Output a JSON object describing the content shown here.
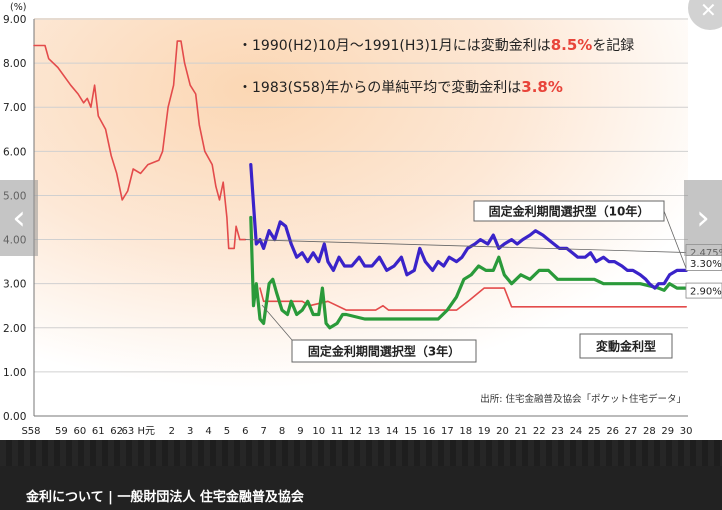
{
  "chart_data": {
    "type": "line",
    "ylabel": "(%)",
    "ylim": [
      0,
      9
    ],
    "y_ticks": [
      "9.00",
      "8.00",
      "7.00",
      "6.00",
      "5.00",
      "4.00",
      "3.00",
      "2.00",
      "1.00",
      "0.00"
    ],
    "x_ticks": [
      "S58",
      "59",
      "60",
      "61",
      "62",
      "63",
      "H元",
      "2",
      "3",
      "4",
      "5",
      "6",
      "7",
      "8",
      "9",
      "10",
      "11",
      "12",
      "13",
      "14",
      "15",
      "16",
      "17",
      "18",
      "19",
      "20",
      "21",
      "22",
      "23",
      "24",
      "25",
      "26",
      "27",
      "28",
      "29",
      "30"
    ],
    "x_tick_years": [
      1983,
      1984,
      1985,
      1986,
      1987,
      1988,
      1989,
      1990,
      1991,
      1992,
      1993,
      1994,
      1995,
      1996,
      1997,
      1998,
      1999,
      2000,
      2001,
      2002,
      2003,
      2004,
      2005,
      2006,
      2007,
      2008,
      2009,
      2010,
      2011,
      2012,
      2013,
      2014,
      2015,
      2016,
      2017,
      2018
    ],
    "annotations": [
      {
        "parts": [
          "・1990(H2)10月～1991(H3)1月には変動金利は",
          "8.5%",
          "を記録"
        ]
      },
      {
        "parts": [
          "・1983(S58)年からの単純平均で変動金利は",
          "3.8%",
          ""
        ]
      }
    ],
    "source": "出所: 住宅金融普及協会「ポケット住宅データ」",
    "series": [
      {
        "name": "変動金利型",
        "color": "#e34b4b",
        "end_label": "2.475%",
        "points": [
          [
            1983.0,
            8.4
          ],
          [
            1983.3,
            8.4
          ],
          [
            1983.6,
            8.4
          ],
          [
            1983.8,
            8.1
          ],
          [
            1984.3,
            7.9
          ],
          [
            1985.0,
            7.5
          ],
          [
            1985.4,
            7.3
          ],
          [
            1985.7,
            7.1
          ],
          [
            1985.9,
            7.2
          ],
          [
            1986.1,
            7.0
          ],
          [
            1986.3,
            7.5
          ],
          [
            1986.5,
            6.8
          ],
          [
            1986.9,
            6.5
          ],
          [
            1987.2,
            5.9
          ],
          [
            1987.5,
            5.5
          ],
          [
            1987.8,
            4.9
          ],
          [
            1988.1,
            5.1
          ],
          [
            1988.4,
            5.6
          ],
          [
            1988.8,
            5.5
          ],
          [
            1989.2,
            5.7
          ],
          [
            1989.8,
            5.8
          ],
          [
            1990.0,
            6.0
          ],
          [
            1990.3,
            7.0
          ],
          [
            1990.6,
            7.5
          ],
          [
            1990.8,
            8.5
          ],
          [
            1991.0,
            8.5
          ],
          [
            1991.2,
            8.0
          ],
          [
            1991.5,
            7.5
          ],
          [
            1991.8,
            7.3
          ],
          [
            1992.0,
            6.6
          ],
          [
            1992.3,
            6.0
          ],
          [
            1992.7,
            5.7
          ],
          [
            1992.9,
            5.2
          ],
          [
            1993.1,
            4.9
          ],
          [
            1993.3,
            5.3
          ],
          [
            1993.5,
            4.5
          ],
          [
            1993.6,
            3.8
          ],
          [
            1993.9,
            3.8
          ],
          [
            1994.0,
            4.3
          ],
          [
            1994.2,
            4.0
          ],
          [
            1994.4,
            4.0
          ],
          [
            1994.5,
            4.0
          ]
        ]
      },
      {
        "name": "変動金利型",
        "color": "#e34b4b",
        "points": [
          [
            1995.3,
            2.9
          ],
          [
            1995.5,
            2.6
          ],
          [
            1996.0,
            2.6
          ],
          [
            1997.0,
            2.6
          ],
          [
            1997.6,
            2.6
          ],
          [
            1998.0,
            2.5
          ],
          [
            1999.0,
            2.6
          ],
          [
            2000.0,
            2.4
          ],
          [
            2001.0,
            2.4
          ],
          [
            2001.6,
            2.4
          ],
          [
            2002.0,
            2.5
          ],
          [
            2002.3,
            2.4
          ],
          [
            2004.0,
            2.4
          ],
          [
            2006.0,
            2.4
          ],
          [
            2006.7,
            2.625
          ],
          [
            2007.5,
            2.9
          ],
          [
            2008.6,
            2.9
          ],
          [
            2009.0,
            2.475
          ],
          [
            2012.0,
            2.475
          ],
          [
            2016.0,
            2.475
          ],
          [
            2018.5,
            2.475
          ]
        ]
      },
      {
        "name": "固定金利期間選択型(3年)",
        "color": "#2a9a3a",
        "end_label": "2.90%",
        "points": [
          [
            1994.8,
            4.5
          ],
          [
            1994.95,
            2.5
          ],
          [
            1995.1,
            3.0
          ],
          [
            1995.3,
            2.2
          ],
          [
            1995.5,
            2.1
          ],
          [
            1995.8,
            3.0
          ],
          [
            1996.0,
            3.1
          ],
          [
            1996.2,
            2.8
          ],
          [
            1996.5,
            2.4
          ],
          [
            1996.8,
            2.3
          ],
          [
            1997.0,
            2.6
          ],
          [
            1997.3,
            2.3
          ],
          [
            1997.6,
            2.4
          ],
          [
            1997.9,
            2.6
          ],
          [
            1998.2,
            2.3
          ],
          [
            1998.5,
            2.3
          ],
          [
            1998.7,
            2.9
          ],
          [
            1998.9,
            2.1
          ],
          [
            1999.1,
            2.0
          ],
          [
            1999.5,
            2.1
          ],
          [
            1999.8,
            2.3
          ],
          [
            2000.0,
            2.3
          ],
          [
            2001.0,
            2.2
          ],
          [
            2002.5,
            2.2
          ],
          [
            2004.0,
            2.2
          ],
          [
            2005.0,
            2.2
          ],
          [
            2005.5,
            2.4
          ],
          [
            2006.0,
            2.7
          ],
          [
            2006.4,
            3.1
          ],
          [
            2006.8,
            3.2
          ],
          [
            2007.2,
            3.4
          ],
          [
            2007.6,
            3.3
          ],
          [
            2008.0,
            3.3
          ],
          [
            2008.3,
            3.6
          ],
          [
            2008.6,
            3.2
          ],
          [
            2009.0,
            3.0
          ],
          [
            2009.5,
            3.2
          ],
          [
            2010.0,
            3.1
          ],
          [
            2010.5,
            3.3
          ],
          [
            2011.0,
            3.3
          ],
          [
            2011.5,
            3.1
          ],
          [
            2012.0,
            3.1
          ],
          [
            2013.5,
            3.1
          ],
          [
            2014.0,
            3.0
          ],
          [
            2016.0,
            3.0
          ],
          [
            2017.0,
            2.9
          ],
          [
            2017.3,
            2.85
          ],
          [
            2017.6,
            3.0
          ],
          [
            2018.0,
            2.9
          ],
          [
            2018.5,
            2.9
          ]
        ]
      },
      {
        "name": "固定金利期間選択型(10年)",
        "color": "#3a23c9",
        "end_label": "3.30%",
        "points": [
          [
            1994.8,
            5.7
          ],
          [
            1994.95,
            4.8
          ],
          [
            1995.1,
            3.9
          ],
          [
            1995.3,
            4.0
          ],
          [
            1995.5,
            3.8
          ],
          [
            1995.8,
            4.2
          ],
          [
            1996.1,
            4.0
          ],
          [
            1996.4,
            4.4
          ],
          [
            1996.7,
            4.3
          ],
          [
            1997.0,
            3.9
          ],
          [
            1997.3,
            3.6
          ],
          [
            1997.6,
            3.7
          ],
          [
            1997.9,
            3.5
          ],
          [
            1998.2,
            3.7
          ],
          [
            1998.5,
            3.5
          ],
          [
            1998.8,
            3.9
          ],
          [
            1999.0,
            3.5
          ],
          [
            1999.3,
            3.3
          ],
          [
            1999.6,
            3.6
          ],
          [
            1999.9,
            3.4
          ],
          [
            2000.3,
            3.4
          ],
          [
            2000.7,
            3.6
          ],
          [
            2001.0,
            3.4
          ],
          [
            2001.4,
            3.4
          ],
          [
            2001.8,
            3.6
          ],
          [
            2002.2,
            3.3
          ],
          [
            2002.6,
            3.4
          ],
          [
            2003.0,
            3.6
          ],
          [
            2003.3,
            3.2
          ],
          [
            2003.7,
            3.3
          ],
          [
            2004.0,
            3.8
          ],
          [
            2004.3,
            3.5
          ],
          [
            2004.7,
            3.3
          ],
          [
            2005.0,
            3.5
          ],
          [
            2005.3,
            3.4
          ],
          [
            2005.6,
            3.6
          ],
          [
            2006.0,
            3.5
          ],
          [
            2006.3,
            3.6
          ],
          [
            2006.6,
            3.8
          ],
          [
            2007.0,
            3.9
          ],
          [
            2007.3,
            4.0
          ],
          [
            2007.7,
            3.9
          ],
          [
            2008.0,
            4.1
          ],
          [
            2008.3,
            3.8
          ],
          [
            2008.6,
            3.9
          ],
          [
            2009.0,
            4.0
          ],
          [
            2009.3,
            3.9
          ],
          [
            2009.6,
            4.0
          ],
          [
            2010.0,
            4.1
          ],
          [
            2010.3,
            4.2
          ],
          [
            2010.7,
            4.1
          ],
          [
            2011.0,
            4.0
          ],
          [
            2011.3,
            3.9
          ],
          [
            2011.6,
            3.8
          ],
          [
            2012.0,
            3.8
          ],
          [
            2012.3,
            3.7
          ],
          [
            2012.6,
            3.6
          ],
          [
            2013.0,
            3.6
          ],
          [
            2013.3,
            3.7
          ],
          [
            2013.6,
            3.5
          ],
          [
            2014.0,
            3.6
          ],
          [
            2014.3,
            3.5
          ],
          [
            2014.6,
            3.5
          ],
          [
            2015.0,
            3.4
          ],
          [
            2015.3,
            3.3
          ],
          [
            2015.6,
            3.3
          ],
          [
            2016.0,
            3.2
          ],
          [
            2016.3,
            3.1
          ],
          [
            2016.5,
            3.0
          ],
          [
            2016.8,
            2.9
          ],
          [
            2017.0,
            3.0
          ],
          [
            2017.3,
            3.0
          ],
          [
            2017.6,
            3.2
          ],
          [
            2018.0,
            3.3
          ],
          [
            2018.5,
            3.3
          ]
        ]
      }
    ],
    "series_labels": [
      "固定金利期間選択型（10年）",
      "固定金利期間選択型（3年）",
      "変動金利型"
    ]
  },
  "caption": "金利について | 一般財団法人 住宅金融普及協会",
  "nav": {
    "prev_symbol": "‹",
    "next_symbol": "›",
    "close_symbol": "✕"
  },
  "colors": {
    "accent_red": "#e8443a",
    "caption_bg": "#222222"
  }
}
